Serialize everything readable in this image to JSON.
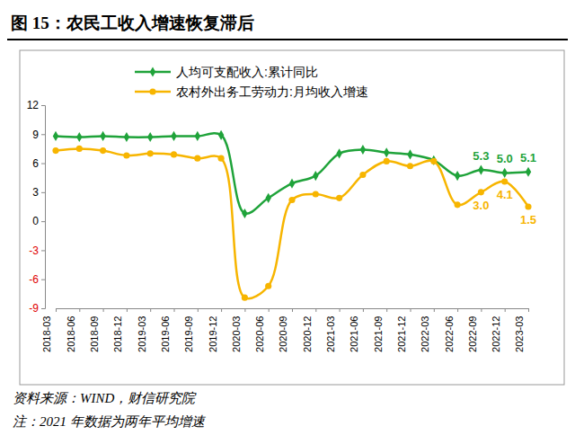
{
  "chart_data": {
    "type": "line",
    "title": "图 15：农民工收入增速恢复滞后",
    "source": "资料来源：WIND，财信研究院",
    "note": "注：2021 年数据为两年平均增速",
    "categories": [
      "2018-03",
      "2018-06",
      "2018-09",
      "2018-12",
      "2019-03",
      "2019-06",
      "2019-09",
      "2019-12",
      "2020-03",
      "2020-06",
      "2020-09",
      "2020-12",
      "2021-03",
      "2021-06",
      "2021-09",
      "2021-12",
      "2022-03",
      "2022-06",
      "2022-09",
      "2022-12",
      "2023-03"
    ],
    "series": [
      {
        "name": "人均可支配收入:累计同比",
        "color": "#1fa33a",
        "marker": "diamond",
        "line_style": "smooth",
        "values": [
          8.8,
          8.7,
          8.8,
          8.7,
          8.7,
          8.8,
          8.8,
          8.9,
          0.8,
          2.4,
          3.9,
          4.7,
          7.0,
          7.4,
          7.1,
          6.9,
          6.3,
          4.7,
          5.3,
          5.0,
          5.1
        ],
        "value_labels": [
          null,
          null,
          null,
          null,
          null,
          null,
          null,
          null,
          null,
          null,
          null,
          null,
          null,
          null,
          null,
          null,
          null,
          null,
          "5.3",
          "5.0",
          "5.1"
        ]
      },
      {
        "name": "农村外出务工劳动力:月均收入增速",
        "color": "#f7b500",
        "marker": "circle",
        "line_style": "smooth",
        "values": [
          7.3,
          7.5,
          7.3,
          6.8,
          7.0,
          6.9,
          6.5,
          6.5,
          -7.9,
          -6.7,
          2.2,
          2.8,
          2.4,
          4.8,
          6.2,
          5.7,
          6.2,
          1.7,
          3.0,
          4.1,
          1.5
        ],
        "value_labels": [
          null,
          null,
          null,
          null,
          null,
          null,
          null,
          null,
          null,
          null,
          null,
          null,
          null,
          null,
          null,
          null,
          null,
          null,
          "3.0",
          "4.1",
          "1.5"
        ]
      }
    ],
    "ylim": [
      -9,
      12
    ],
    "yticks": [
      -9,
      -6,
      -3,
      0,
      3,
      6,
      9,
      12
    ],
    "grid": false,
    "legend": "top",
    "data_labels": true
  }
}
